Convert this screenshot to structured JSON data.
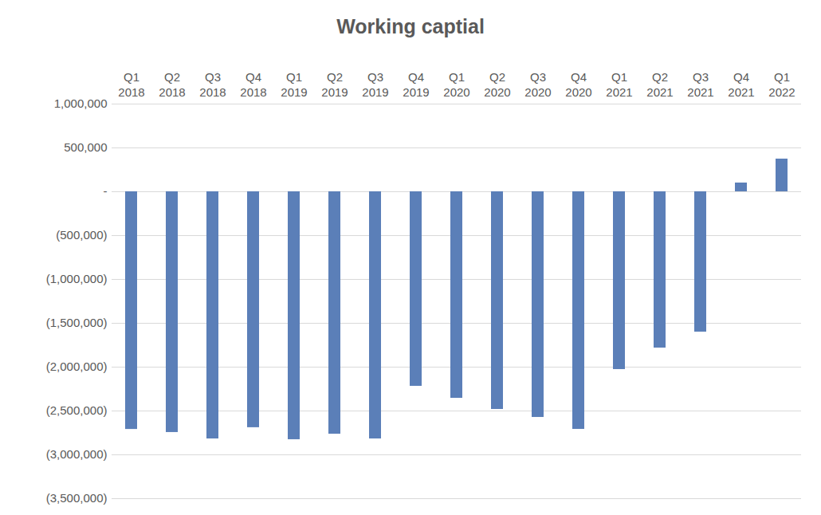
{
  "chart_data": {
    "type": "bar",
    "title": "Working captial",
    "categories": [
      "Q1\n2018",
      "Q2\n2018",
      "Q3\n2018",
      "Q4\n2018",
      "Q1\n2019",
      "Q2\n2019",
      "Q3\n2019",
      "Q4\n2019",
      "Q1\n2020",
      "Q2\n2020",
      "Q3\n2020",
      "Q4\n2020",
      "Q1\n2021",
      "Q2\n2021",
      "Q3\n2021",
      "Q4\n2021",
      "Q1\n2022"
    ],
    "values": [
      -2710000,
      -2745000,
      -2818000,
      -2690000,
      -2827000,
      -2764000,
      -2818000,
      -2218000,
      -2355000,
      -2482000,
      -2573000,
      -2709000,
      -2027000,
      -1782000,
      -1600000,
      100000,
      373000
    ],
    "color": "#5b7fb8",
    "ylim": [
      -3500000,
      1000000
    ],
    "yticks": [
      {
        "value": 1000000,
        "label": "1,000,000"
      },
      {
        "value": 500000,
        "label": "500,000"
      },
      {
        "value": 0,
        "label": "-"
      },
      {
        "value": -500000,
        "label": "(500,000)"
      },
      {
        "value": -1000000,
        "label": "(1,000,000)"
      },
      {
        "value": -1500000,
        "label": "(1,500,000)"
      },
      {
        "value": -2000000,
        "label": "(2,000,000)"
      },
      {
        "value": -2500000,
        "label": "(2,500,000)"
      },
      {
        "value": -3000000,
        "label": "(3,000,000)"
      },
      {
        "value": -3500000,
        "label": "(3,500,000)"
      }
    ],
    "grid": true
  }
}
